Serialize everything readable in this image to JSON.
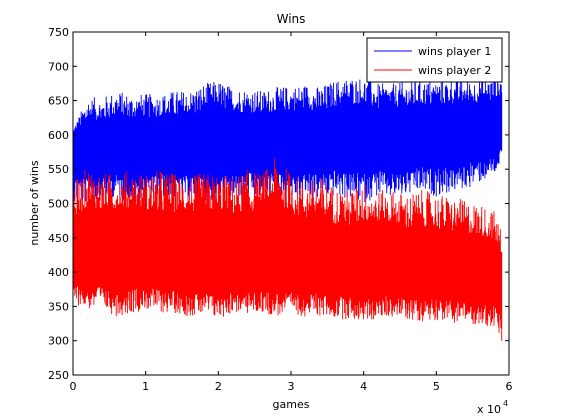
{
  "chart_data": {
    "type": "line",
    "title": "Wins",
    "xlabel": "games",
    "ylabel": "number of wins",
    "x_exponent_label": "x 10",
    "x_exponent_power": "4",
    "xlim": [
      0,
      60000
    ],
    "ylim": [
      250,
      750
    ],
    "x_ticks": [
      0,
      10000,
      20000,
      30000,
      40000,
      50000,
      60000
    ],
    "x_tick_labels": [
      "0",
      "1",
      "2",
      "3",
      "4",
      "5",
      "6"
    ],
    "y_ticks": [
      250,
      300,
      350,
      400,
      450,
      500,
      550,
      600,
      650,
      700,
      750
    ],
    "y_tick_labels": [
      "250",
      "300",
      "350",
      "400",
      "450",
      "500",
      "550",
      "600",
      "650",
      "700",
      "750"
    ],
    "grid": false,
    "legend_position": "top-right",
    "series": [
      {
        "name": "wins player 1",
        "color": "#0000ff",
        "x": [
          0,
          2000,
          4000,
          6000,
          8000,
          10000,
          12000,
          14000,
          16000,
          18000,
          20000,
          22000,
          24000,
          26000,
          28000,
          30000,
          32000,
          34000,
          36000,
          38000,
          40000,
          42000,
          44000,
          46000,
          48000,
          50000,
          52000,
          54000,
          56000,
          58000,
          59000
        ],
        "min": [
          495,
          500,
          505,
          510,
          500,
          505,
          510,
          500,
          505,
          505,
          500,
          505,
          510,
          505,
          510,
          505,
          510,
          505,
          510,
          505,
          500,
          510,
          505,
          510,
          515,
          510,
          515,
          520,
          530,
          540,
          560
        ],
        "max": [
          610,
          655,
          655,
          665,
          660,
          660,
          660,
          665,
          665,
          675,
          680,
          670,
          668,
          665,
          670,
          672,
          675,
          670,
          680,
          685,
          685,
          675,
          675,
          678,
          680,
          680,
          682,
          680,
          682,
          685,
          690
        ],
        "mean": [
          585,
          580,
          580,
          582,
          580,
          582,
          585,
          585,
          585,
          588,
          590,
          588,
          590,
          588,
          590,
          590,
          592,
          590,
          595,
          595,
          598,
          595,
          595,
          598,
          600,
          600,
          602,
          603,
          605,
          608,
          615
        ]
      },
      {
        "name": "wins player 2",
        "color": "#ff0000",
        "x": [
          0,
          2000,
          4000,
          6000,
          8000,
          10000,
          12000,
          14000,
          16000,
          18000,
          20000,
          22000,
          24000,
          26000,
          28000,
          30000,
          32000,
          34000,
          36000,
          38000,
          40000,
          42000,
          44000,
          46000,
          48000,
          50000,
          52000,
          54000,
          56000,
          58000,
          59000
        ],
        "min": [
          355,
          345,
          345,
          335,
          340,
          345,
          340,
          340,
          335,
          335,
          330,
          340,
          338,
          340,
          335,
          338,
          335,
          335,
          332,
          330,
          328,
          330,
          335,
          330,
          328,
          330,
          326,
          325,
          322,
          318,
          292
        ],
        "max": [
          530,
          555,
          545,
          545,
          550,
          545,
          550,
          545,
          540,
          545,
          545,
          540,
          550,
          545,
          570,
          545,
          535,
          540,
          525,
          520,
          535,
          520,
          520,
          515,
          520,
          515,
          510,
          505,
          500,
          490,
          460
        ],
        "mean": [
          415,
          420,
          420,
          418,
          420,
          418,
          415,
          415,
          415,
          412,
          410,
          412,
          410,
          412,
          410,
          410,
          408,
          410,
          405,
          405,
          402,
          405,
          405,
          402,
          400,
          400,
          398,
          397,
          395,
          392,
          385
        ]
      }
    ]
  }
}
